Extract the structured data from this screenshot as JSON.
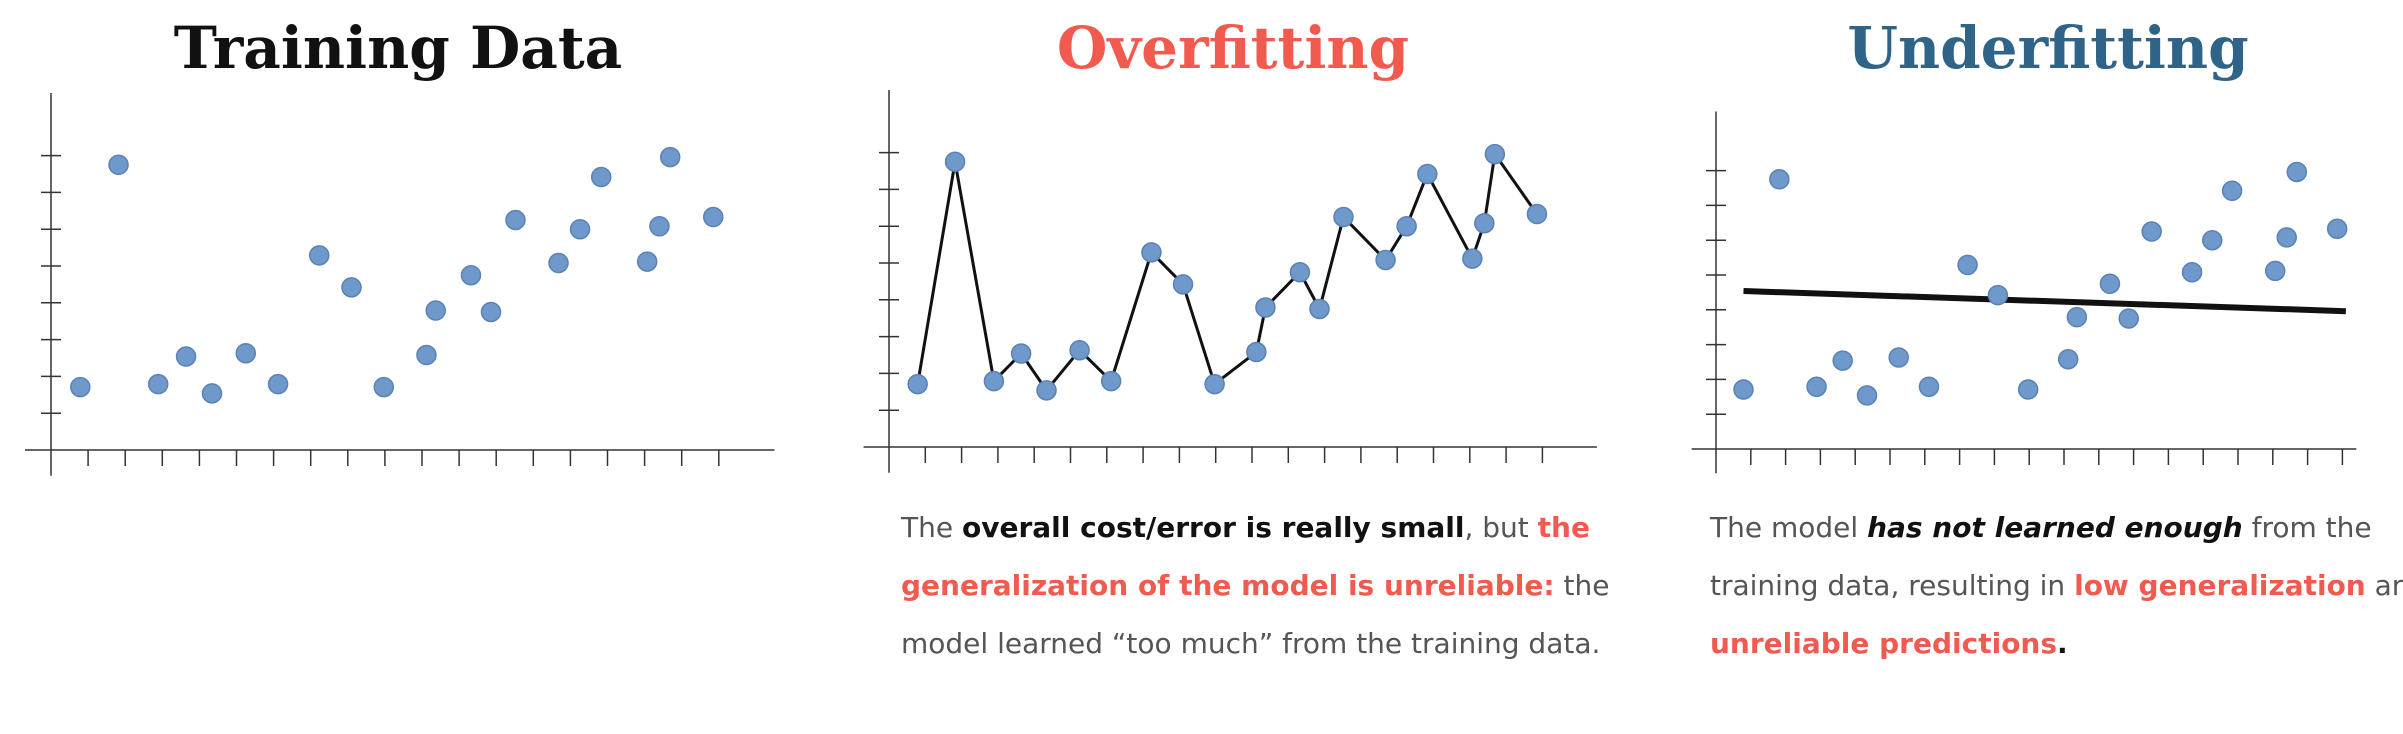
{
  "chart_data": [
    {
      "type": "scatter",
      "title": "Training Data",
      "title_color": "#111111",
      "color": "#6f98cb",
      "x": [
        0.79,
        1.82,
        2.89,
        3.64,
        4.34,
        5.25,
        6.12,
        7.23,
        8.1,
        8.97,
        10.12,
        10.37,
        11.32,
        11.86,
        12.52,
        13.68,
        14.26,
        14.83,
        16.07,
        16.4,
        16.69,
        17.85
      ],
      "y": [
        1.71,
        7.75,
        1.79,
        2.54,
        1.54,
        2.63,
        1.79,
        5.29,
        4.42,
        1.71,
        2.58,
        3.79,
        4.75,
        3.75,
        6.25,
        5.08,
        6.0,
        7.42,
        5.12,
        6.08,
        7.96,
        6.33
      ],
      "xlim": [
        -0.7,
        19.5
      ],
      "ylim": [
        -0.7,
        9.7
      ],
      "xticks": [
        1,
        2,
        3,
        4,
        5,
        6,
        7,
        8,
        9,
        10,
        11,
        12,
        13,
        14,
        15,
        16,
        17,
        18
      ],
      "yticks": [
        1,
        2,
        3,
        4,
        5,
        6,
        7,
        8
      ]
    },
    {
      "type": "line",
      "title": "Overfitting",
      "title_color": "#f15a4f",
      "color": "#6f98cb",
      "line_color": "#111111",
      "x": [
        0.79,
        1.82,
        2.89,
        3.64,
        4.34,
        5.25,
        6.12,
        7.23,
        8.1,
        8.97,
        10.12,
        10.37,
        11.32,
        11.86,
        12.52,
        13.68,
        14.26,
        14.83,
        16.07,
        16.4,
        16.69,
        17.85
      ],
      "y": [
        1.71,
        7.75,
        1.79,
        2.54,
        1.54,
        2.63,
        1.79,
        5.29,
        4.42,
        1.71,
        2.58,
        3.79,
        4.75,
        3.75,
        6.25,
        5.08,
        6.0,
        7.42,
        5.12,
        6.08,
        7.96,
        6.33
      ],
      "xlim": [
        -0.7,
        19.5
      ],
      "ylim": [
        -0.7,
        9.7
      ],
      "xticks": [
        1,
        2,
        3,
        4,
        5,
        6,
        7,
        8,
        9,
        10,
        11,
        12,
        13,
        14,
        15,
        16,
        17,
        18
      ],
      "yticks": [
        1,
        2,
        3,
        4,
        5,
        6,
        7,
        8
      ],
      "caption": [
        [
          {
            "text": "The ",
            "style": "normal"
          },
          {
            "text": "overall cost/error is really small",
            "style": "bold"
          },
          {
            "text": ", but ",
            "style": "normal"
          },
          {
            "text": "the",
            "style": "red"
          }
        ],
        [
          {
            "text": "generalization of the model is unreliable:",
            "style": "red"
          },
          {
            "text": " the",
            "style": "normal"
          }
        ],
        [
          {
            "text": "model learned “too much” from the training data.",
            "style": "normal"
          }
        ]
      ]
    },
    {
      "type": "scatter",
      "title": "Underfitting",
      "title_color": "#2f6388",
      "color": "#6f98cb",
      "line_color": "#111111",
      "x": [
        0.79,
        1.82,
        2.89,
        3.64,
        4.34,
        5.25,
        6.12,
        7.23,
        8.1,
        8.97,
        10.12,
        10.37,
        11.32,
        11.86,
        12.52,
        13.68,
        14.26,
        14.83,
        16.07,
        16.4,
        16.69,
        17.85
      ],
      "y": [
        1.71,
        7.75,
        1.79,
        2.54,
        1.54,
        2.63,
        1.79,
        5.29,
        4.42,
        1.71,
        2.58,
        3.79,
        4.75,
        3.75,
        6.25,
        5.08,
        6.0,
        7.42,
        5.12,
        6.08,
        7.96,
        6.33
      ],
      "fit_line": {
        "x": [
          0.79,
          18.1
        ],
        "y": [
          4.54,
          3.96
        ]
      },
      "xlim": [
        -0.7,
        18.4
      ],
      "ylim": [
        -0.7,
        9.7
      ],
      "xticks": [
        1,
        2,
        3,
        4,
        5,
        6,
        7,
        8,
        9,
        10,
        11,
        12,
        13,
        14,
        15,
        16,
        17,
        18
      ],
      "yticks": [
        1,
        2,
        3,
        4,
        5,
        6,
        7,
        8
      ],
      "caption": [
        [
          {
            "text": "The model ",
            "style": "normal"
          },
          {
            "text": "has not learned enough",
            "style": "bold-italic"
          },
          {
            "text": " from the",
            "style": "normal"
          }
        ],
        [
          {
            "text": "training data, resulting in ",
            "style": "normal"
          },
          {
            "text": "low generalization",
            "style": "red"
          },
          {
            "text": " and",
            "style": "normal"
          }
        ],
        [
          {
            "text": "unreliable predictions",
            "style": "red"
          },
          {
            "text": ".",
            "style": "bold"
          }
        ]
      ]
    }
  ]
}
